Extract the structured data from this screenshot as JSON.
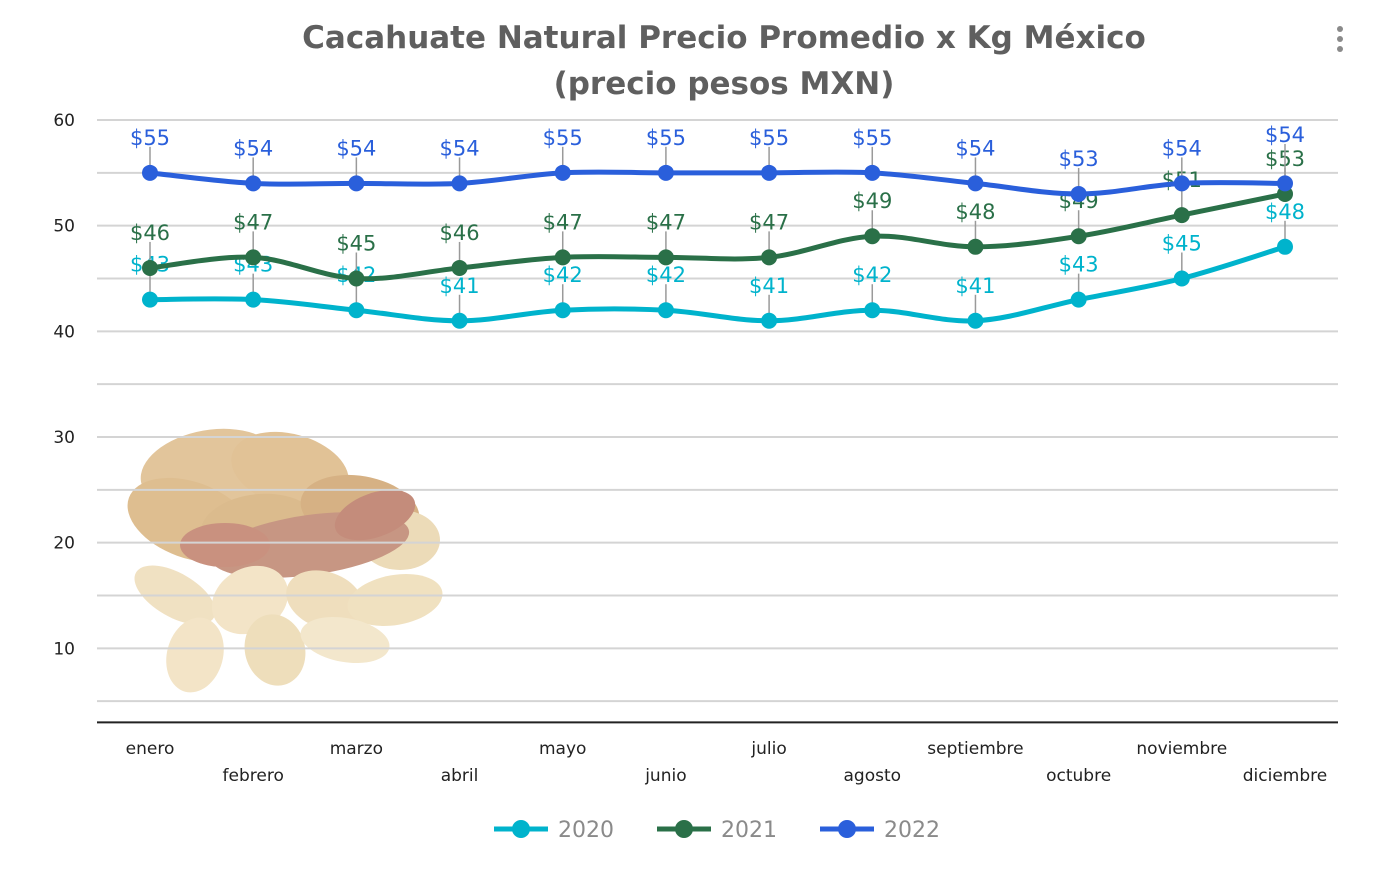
{
  "chart_data": {
    "type": "line",
    "title": [
      "Cacahuate Natural Precio Promedio x Kg México",
      "(precio pesos MXN)"
    ],
    "categories": [
      "enero",
      "febrero",
      "marzo",
      "abril",
      "mayo",
      "junio",
      "julio",
      "agosto",
      "septiembre",
      "octubre",
      "noviembre",
      "diciembre"
    ],
    "yticks": [
      10,
      20,
      30,
      40,
      50,
      60
    ],
    "ylim": [
      3,
      60
    ],
    "grid": true,
    "legend_position": "bottom",
    "label_prefix": "$",
    "series": [
      {
        "name": "2020",
        "color": "#00b3cc",
        "values": [
          43,
          43,
          42,
          41,
          42,
          42,
          41,
          42,
          41,
          43,
          45,
          48
        ]
      },
      {
        "name": "2021",
        "color": "#2a7048",
        "values": [
          46,
          47,
          45,
          46,
          47,
          47,
          47,
          49,
          48,
          49,
          51,
          53
        ]
      },
      {
        "name": "2022",
        "color": "#2a5fdb",
        "values": [
          55,
          54,
          54,
          54,
          55,
          55,
          55,
          55,
          54,
          53,
          54,
          54
        ]
      }
    ]
  },
  "menu_icon": "more-vertical-icon",
  "decor_image": "peanuts-image"
}
